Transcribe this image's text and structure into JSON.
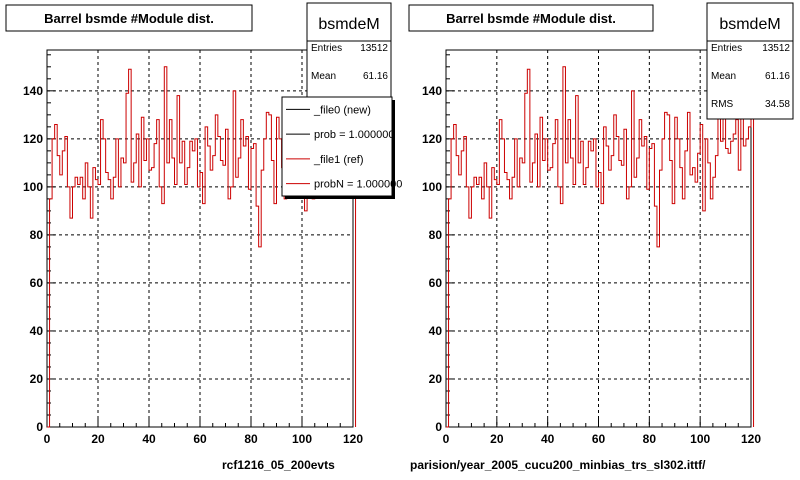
{
  "chart_data": [
    {
      "type": "line",
      "title": "Barrel bsmde #Module dist.",
      "xlim": [
        0,
        120
      ],
      "ylim": [
        0,
        157
      ],
      "x_ticks": [
        0,
        20,
        40,
        60,
        80,
        100,
        120
      ],
      "y_ticks": [
        0,
        20,
        40,
        60,
        80,
        100,
        120,
        140
      ],
      "grid": true,
      "stats": {
        "name": "bsmdeM",
        "rows": [
          {
            "label": "Entries",
            "value": "13512"
          },
          {
            "label": "Mean",
            "value": "61.16"
          }
        ]
      },
      "legend": {
        "placement": "top-right",
        "entries": [
          {
            "label": "_file0 (new)",
            "color": "#000000"
          },
          {
            "label": "prob = 1.000000",
            "color": "#000000"
          },
          {
            "label": "_file1 (ref)",
            "color": "#cc0000"
          },
          {
            "label": "probN = 1.000000",
            "color": "#cc0000"
          }
        ]
      },
      "footer": "rcf1216_05_200evts",
      "series": [
        {
          "color": "#cc0000",
          "bin_width": 1,
          "values": [
            0,
            95,
            120,
            126,
            113,
            105,
            115,
            121,
            100,
            87,
            100,
            104,
            101,
            104,
            95,
            110,
            100,
            87,
            108,
            103,
            101,
            128,
            120,
            106,
            103,
            95,
            104,
            120,
            100,
            112,
            110,
            139,
            149,
            102,
            110,
            122,
            100,
            129,
            111,
            120,
            107,
            108,
            118,
            128,
            100,
            93,
            150,
            110,
            128,
            112,
            101,
            138,
            110,
            119,
            101,
            108,
            119,
            115,
            120,
            100,
            106,
            93,
            125,
            117,
            107,
            113,
            130,
            121,
            111,
            109,
            124,
            95,
            100,
            140,
            104,
            112,
            128,
            117,
            121,
            99,
            116,
            118,
            92,
            75,
            107,
            120,
            131,
            130,
            111,
            93,
            129,
            120,
            108,
            95,
            115,
            131,
            105,
            108,
            102,
            114,
            126,
            90,
            120,
            110,
            95,
            104,
            113,
            131,
            119,
            135,
            116,
            114,
            119,
            122,
            128,
            107,
            143,
            117,
            120,
            125,
            142
          ]
        }
      ]
    },
    {
      "type": "line",
      "title": "Barrel bsmde #Module dist.",
      "xlim": [
        0,
        120
      ],
      "ylim": [
        0,
        157
      ],
      "x_ticks": [
        0,
        20,
        40,
        60,
        80,
        100,
        120
      ],
      "y_ticks": [
        0,
        20,
        40,
        60,
        80,
        100,
        120,
        140
      ],
      "grid": true,
      "stats": {
        "name": "bsmdeM",
        "rows": [
          {
            "label": "Entries",
            "value": "13512"
          },
          {
            "label": "Mean",
            "value": "61.16"
          },
          {
            "label": "RMS",
            "value": "34.58"
          }
        ]
      },
      "footer": "parision/year_2005_cucu200_minbias_trs_sl302.ittf/",
      "series": [
        {
          "color": "#cc0000",
          "bin_width": 1,
          "values": [
            0,
            95,
            120,
            126,
            113,
            105,
            115,
            121,
            100,
            87,
            100,
            104,
            101,
            104,
            95,
            110,
            100,
            87,
            108,
            103,
            101,
            128,
            120,
            106,
            103,
            95,
            104,
            120,
            100,
            112,
            110,
            139,
            149,
            102,
            110,
            122,
            100,
            129,
            111,
            120,
            107,
            108,
            118,
            128,
            100,
            93,
            150,
            110,
            128,
            112,
            101,
            138,
            110,
            119,
            101,
            108,
            119,
            115,
            120,
            100,
            106,
            93,
            125,
            117,
            107,
            113,
            130,
            121,
            111,
            109,
            124,
            95,
            100,
            140,
            104,
            112,
            128,
            117,
            121,
            99,
            116,
            118,
            92,
            75,
            107,
            120,
            131,
            130,
            111,
            93,
            129,
            120,
            108,
            95,
            115,
            131,
            105,
            108,
            102,
            114,
            126,
            90,
            120,
            110,
            95,
            104,
            113,
            131,
            119,
            135,
            116,
            114,
            119,
            122,
            128,
            107,
            143,
            117,
            120,
            125,
            142
          ]
        }
      ]
    }
  ]
}
